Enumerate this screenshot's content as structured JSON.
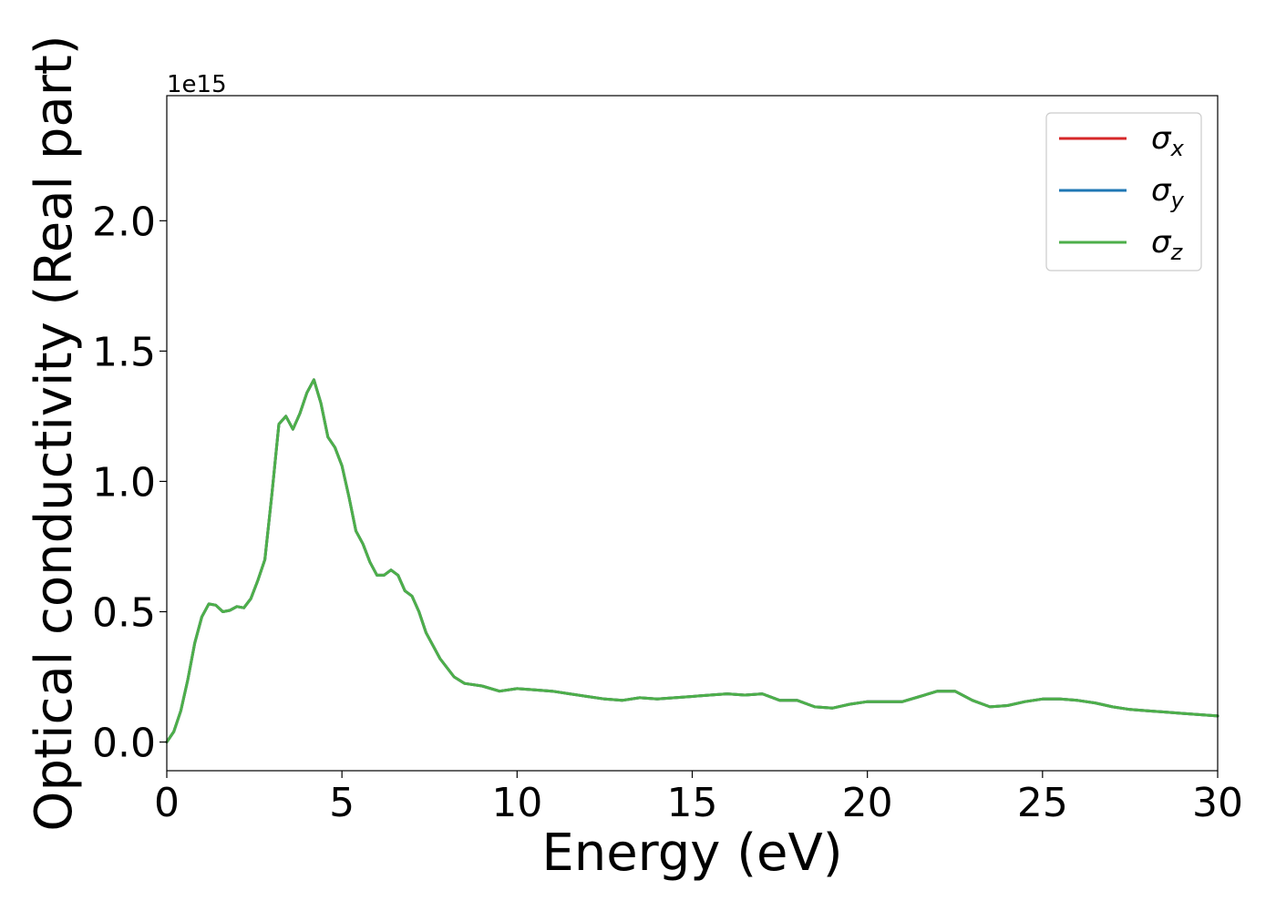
{
  "chart_data": {
    "type": "line",
    "title": "",
    "xlabel": "Energy (eV)",
    "ylabel": "Optical conductivity (Real part)",
    "y_offset_label": "1e15",
    "y_scale_factor": 1000000000000000.0,
    "xlim": [
      0,
      30
    ],
    "ylim": [
      -0.11,
      2.48
    ],
    "x_ticks": [
      0,
      5,
      10,
      15,
      20,
      25,
      30
    ],
    "x_tick_labels": [
      "0",
      "5",
      "10",
      "15",
      "20",
      "25",
      "30"
    ],
    "y_ticks": [
      0.0,
      0.5,
      1.0,
      1.5,
      2.0
    ],
    "y_tick_labels": [
      "0.0",
      "0.5",
      "1.0",
      "1.5",
      "2.0"
    ],
    "grid": false,
    "legend_position": "top-right",
    "x": [
      0,
      0.2,
      0.4,
      0.6,
      0.8,
      1.0,
      1.2,
      1.4,
      1.6,
      1.8,
      2.0,
      2.2,
      2.4,
      2.6,
      2.8,
      3.0,
      3.2,
      3.4,
      3.6,
      3.8,
      4.0,
      4.2,
      4.4,
      4.6,
      4.8,
      5.0,
      5.2,
      5.4,
      5.6,
      5.8,
      6.0,
      6.2,
      6.4,
      6.6,
      6.8,
      7.0,
      7.2,
      7.4,
      7.6,
      7.8,
      8.0,
      8.2,
      8.5,
      9.0,
      9.5,
      10.0,
      10.5,
      11.0,
      11.5,
      12.0,
      12.5,
      13.0,
      13.5,
      14.0,
      14.5,
      15.0,
      15.5,
      16.0,
      16.5,
      17.0,
      17.5,
      18.0,
      18.5,
      19.0,
      19.5,
      20.0,
      20.5,
      21.0,
      21.5,
      22.0,
      22.5,
      23.0,
      23.5,
      24.0,
      24.5,
      25.0,
      25.5,
      26.0,
      26.5,
      27.0,
      27.5,
      28.0,
      28.5,
      29.0,
      29.5,
      30.0
    ],
    "series": [
      {
        "name": "σx",
        "color": "#d62728",
        "values": [
          0.0,
          0.04,
          0.12,
          0.24,
          0.38,
          0.48,
          0.53,
          0.525,
          0.5,
          0.505,
          0.52,
          0.515,
          0.55,
          0.62,
          0.7,
          0.95,
          1.22,
          1.25,
          1.2,
          1.26,
          1.34,
          1.39,
          1.3,
          1.17,
          1.13,
          1.06,
          0.94,
          0.81,
          0.76,
          0.69,
          0.64,
          0.64,
          0.66,
          0.64,
          0.58,
          0.56,
          0.5,
          0.42,
          0.37,
          0.32,
          0.285,
          0.25,
          0.225,
          0.215,
          0.195,
          0.205,
          0.2,
          0.195,
          0.185,
          0.175,
          0.165,
          0.16,
          0.17,
          0.165,
          0.17,
          0.175,
          0.18,
          0.185,
          0.18,
          0.185,
          0.16,
          0.16,
          0.135,
          0.13,
          0.145,
          0.155,
          0.155,
          0.155,
          0.175,
          0.195,
          0.195,
          0.16,
          0.135,
          0.14,
          0.155,
          0.165,
          0.165,
          0.16,
          0.15,
          0.135,
          0.125,
          0.12,
          0.115,
          0.11,
          0.105,
          0.1
        ]
      },
      {
        "name": "σy",
        "color": "#1f77b4",
        "values": [
          0.0,
          0.04,
          0.12,
          0.24,
          0.38,
          0.48,
          0.53,
          0.525,
          0.5,
          0.505,
          0.52,
          0.515,
          0.55,
          0.62,
          0.7,
          0.95,
          1.22,
          1.25,
          1.2,
          1.26,
          1.34,
          1.39,
          1.3,
          1.17,
          1.13,
          1.06,
          0.94,
          0.81,
          0.76,
          0.69,
          0.64,
          0.64,
          0.66,
          0.64,
          0.58,
          0.56,
          0.5,
          0.42,
          0.37,
          0.32,
          0.285,
          0.25,
          0.225,
          0.215,
          0.195,
          0.205,
          0.2,
          0.195,
          0.185,
          0.175,
          0.165,
          0.16,
          0.17,
          0.165,
          0.17,
          0.175,
          0.18,
          0.185,
          0.18,
          0.185,
          0.16,
          0.16,
          0.135,
          0.13,
          0.145,
          0.155,
          0.155,
          0.155,
          0.175,
          0.195,
          0.195,
          0.16,
          0.135,
          0.14,
          0.155,
          0.165,
          0.165,
          0.16,
          0.15,
          0.135,
          0.125,
          0.12,
          0.115,
          0.11,
          0.105,
          0.1
        ]
      },
      {
        "name": "σz",
        "color": "#4daf4a",
        "values": [
          0.0,
          0.04,
          0.12,
          0.24,
          0.38,
          0.48,
          0.53,
          0.525,
          0.5,
          0.505,
          0.52,
          0.515,
          0.55,
          0.62,
          0.7,
          0.95,
          1.22,
          1.25,
          1.2,
          1.26,
          1.34,
          1.39,
          1.3,
          1.17,
          1.13,
          1.06,
          0.94,
          0.81,
          0.76,
          0.69,
          0.64,
          0.64,
          0.66,
          0.64,
          0.58,
          0.56,
          0.5,
          0.42,
          0.37,
          0.32,
          0.285,
          0.25,
          0.225,
          0.215,
          0.195,
          0.205,
          0.2,
          0.195,
          0.185,
          0.175,
          0.165,
          0.16,
          0.17,
          0.165,
          0.17,
          0.175,
          0.18,
          0.185,
          0.18,
          0.185,
          0.16,
          0.16,
          0.135,
          0.13,
          0.145,
          0.155,
          0.155,
          0.155,
          0.175,
          0.195,
          0.195,
          0.16,
          0.135,
          0.14,
          0.155,
          0.165,
          0.165,
          0.16,
          0.15,
          0.135,
          0.125,
          0.12,
          0.115,
          0.11,
          0.105,
          0.1
        ]
      }
    ],
    "legend": [
      {
        "symbol": "σ",
        "sub": "x",
        "color": "#d62728"
      },
      {
        "symbol": "σ",
        "sub": "y",
        "color": "#1f77b4"
      },
      {
        "symbol": "σ",
        "sub": "z",
        "color": "#4daf4a"
      }
    ]
  }
}
